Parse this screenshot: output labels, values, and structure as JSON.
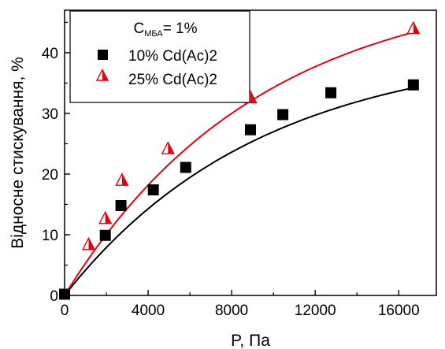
{
  "chart_data": {
    "type": "scatter",
    "xlabel": "P, Па",
    "ylabel": "Відносне стискування, %",
    "xlim": [
      0,
      17800
    ],
    "ylim": [
      0,
      47
    ],
    "x_ticks": [
      0,
      4000,
      8000,
      12000,
      16000
    ],
    "x_tick_labels": [
      "0",
      "4000",
      "8000",
      "12000",
      "16000"
    ],
    "y_ticks": [
      0,
      10,
      20,
      30,
      40
    ],
    "y_tick_labels": [
      "0",
      "10",
      "20",
      "30",
      "40"
    ],
    "grid": false,
    "legend": {
      "placement": "top-left",
      "header_prefix": "C",
      "header_sub": "МБА",
      "header_suffix": "= 1%"
    },
    "series": [
      {
        "name": "10% Cd(Ac)2",
        "marker": "square",
        "color": "#000000",
        "points": [
          [
            0,
            0.2
          ],
          [
            1950,
            9.9
          ],
          [
            2700,
            14.8
          ],
          [
            4250,
            17.4
          ],
          [
            5800,
            21.1
          ],
          [
            8900,
            27.3
          ],
          [
            10450,
            29.8
          ],
          [
            12750,
            33.4
          ],
          [
            16700,
            34.7
          ]
        ],
        "fit": {
          "type": "exp-saturation",
          "a": 41.2,
          "b": 9400,
          "x_range": [
            0,
            16700
          ]
        }
      },
      {
        "name": "25% Cd(Ac)2",
        "marker": "half-filled-triangle",
        "color": "#e8000d",
        "points": [
          [
            1150,
            8.4
          ],
          [
            1950,
            12.7
          ],
          [
            2750,
            19.0
          ],
          [
            4950,
            24.2
          ],
          [
            8900,
            32.6
          ],
          [
            16700,
            44.0
          ]
        ],
        "fit": {
          "type": "exp-saturation",
          "a": 52.0,
          "b": 9300,
          "x_range": [
            0,
            16700
          ]
        }
      }
    ]
  }
}
